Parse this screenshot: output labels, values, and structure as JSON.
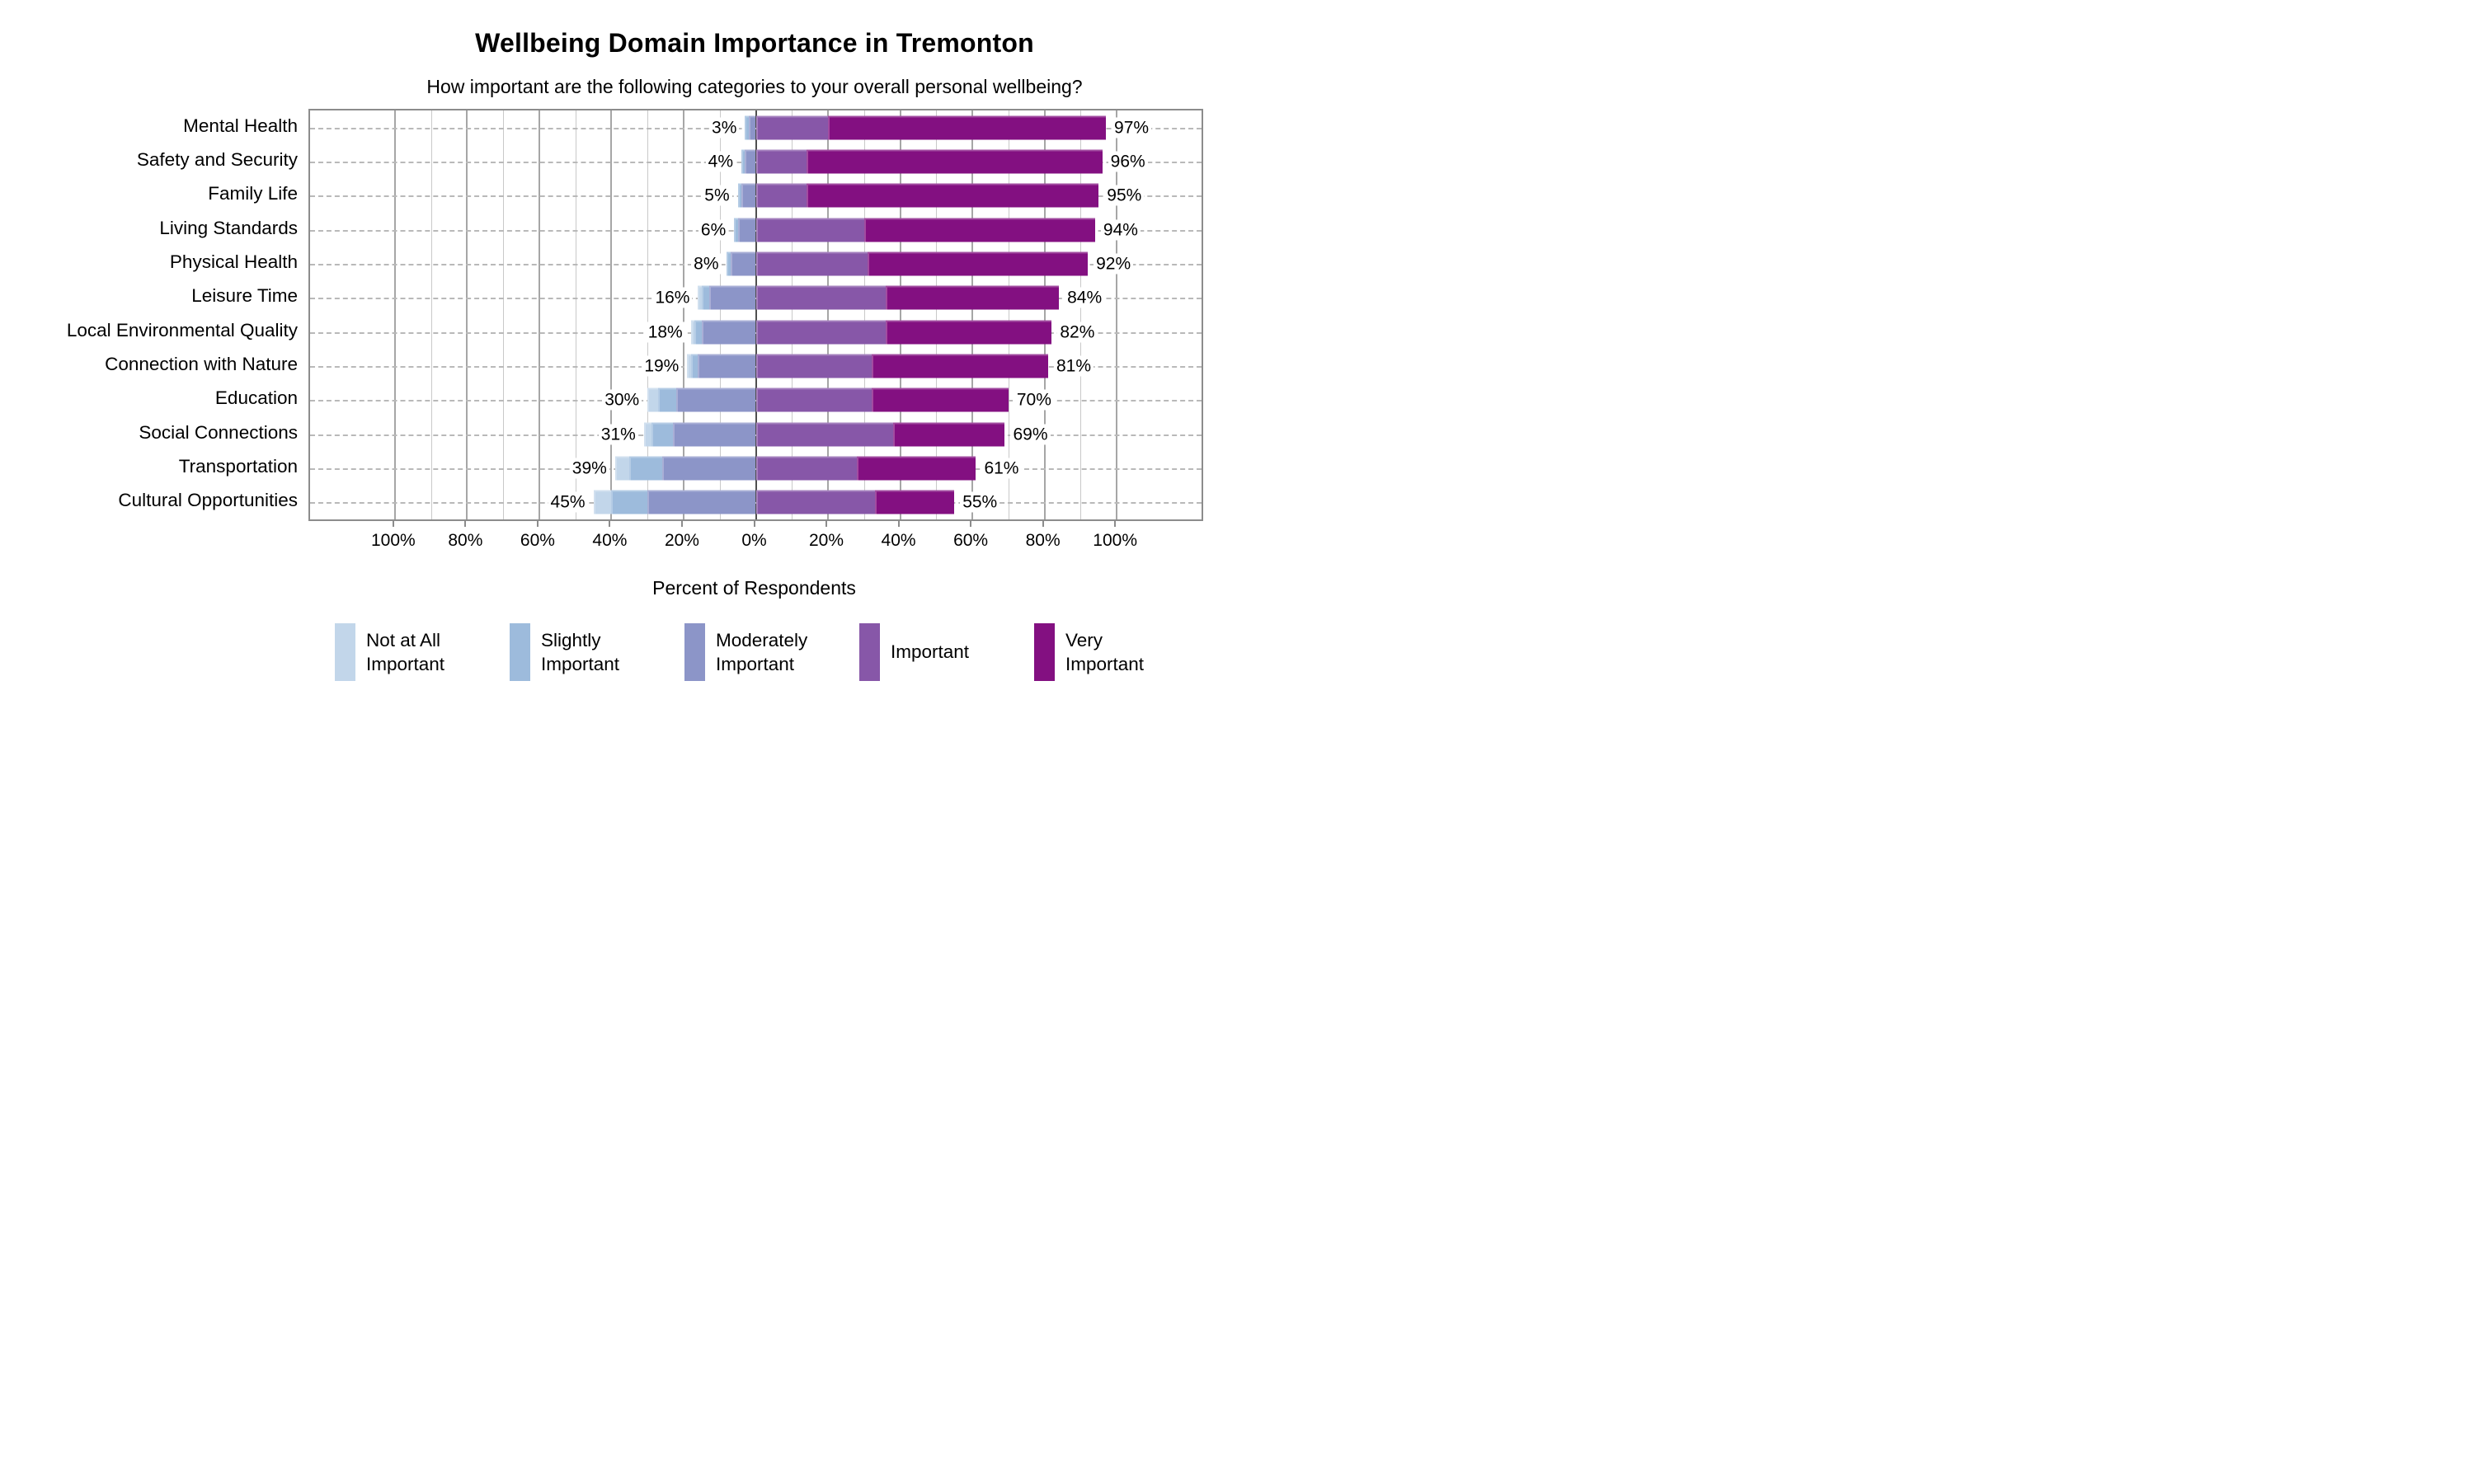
{
  "chart_data": {
    "type": "bar",
    "variant": "horizontal-diverging-stacked",
    "title": "Wellbeing Domain Importance in Tremonton",
    "subtitle": "How important are the following categories to your overall personal wellbeing?",
    "xlabel": "Percent of Respondents",
    "categories": [
      "Mental Health",
      "Safety and Security",
      "Family Life",
      "Living Standards",
      "Physical Health",
      "Leisure Time",
      "Local Environmental Quality",
      "Connection with Nature",
      "Education",
      "Social Connections",
      "Transportation",
      "Cultural Opportunities"
    ],
    "series": [
      {
        "name": "Not at All Important",
        "color": "#c2d6ea",
        "side": "left",
        "values": [
          0,
          0,
          0,
          0,
          0,
          1,
          1,
          1,
          3,
          2,
          4,
          5
        ]
      },
      {
        "name": "Slightly Important",
        "color": "#9dbbdc",
        "side": "left",
        "values": [
          1,
          1,
          1,
          1,
          1,
          2,
          2,
          2,
          5,
          6,
          9,
          10
        ]
      },
      {
        "name": "Moderately Important",
        "color": "#8c95c8",
        "side": "left",
        "values": [
          2,
          3,
          4,
          5,
          7,
          13,
          15,
          16,
          22,
          23,
          26,
          30
        ]
      },
      {
        "name": "Important",
        "color": "#8757a8",
        "side": "right",
        "values": [
          20,
          14,
          14,
          30,
          31,
          36,
          36,
          32,
          32,
          38,
          28,
          33
        ]
      },
      {
        "name": "Very Important",
        "color": "#831081",
        "side": "right",
        "values": [
          77,
          82,
          81,
          64,
          61,
          48,
          46,
          49,
          38,
          31,
          33,
          22
        ]
      }
    ],
    "left_total_labels": [
      "3%",
      "4%",
      "5%",
      "6%",
      "8%",
      "16%",
      "18%",
      "19%",
      "30%",
      "31%",
      "39%",
      "45%"
    ],
    "right_total_labels": [
      "97%",
      "96%",
      "95%",
      "94%",
      "92%",
      "84%",
      "82%",
      "81%",
      "70%",
      "69%",
      "61%",
      "55%"
    ],
    "xtick_values": [
      -100,
      -80,
      -60,
      -40,
      -20,
      0,
      20,
      40,
      60,
      80,
      100
    ],
    "xtick_labels": [
      "100%",
      "80%",
      "60%",
      "40%",
      "20%",
      "0%",
      "20%",
      "40%",
      "60%",
      "80%",
      "100%"
    ],
    "gridline_values": [
      -100,
      -90,
      -80,
      -70,
      -60,
      -50,
      -40,
      -30,
      -20,
      -10,
      0,
      10,
      20,
      30,
      40,
      50,
      60,
      70,
      80,
      90,
      100
    ],
    "xlim": [
      -123.5,
      123.5
    ],
    "grid": "vertical lines every 10% (major every 20%), dashed horizontal line per category, dark line at 0%",
    "legend_position": "bottom"
  }
}
